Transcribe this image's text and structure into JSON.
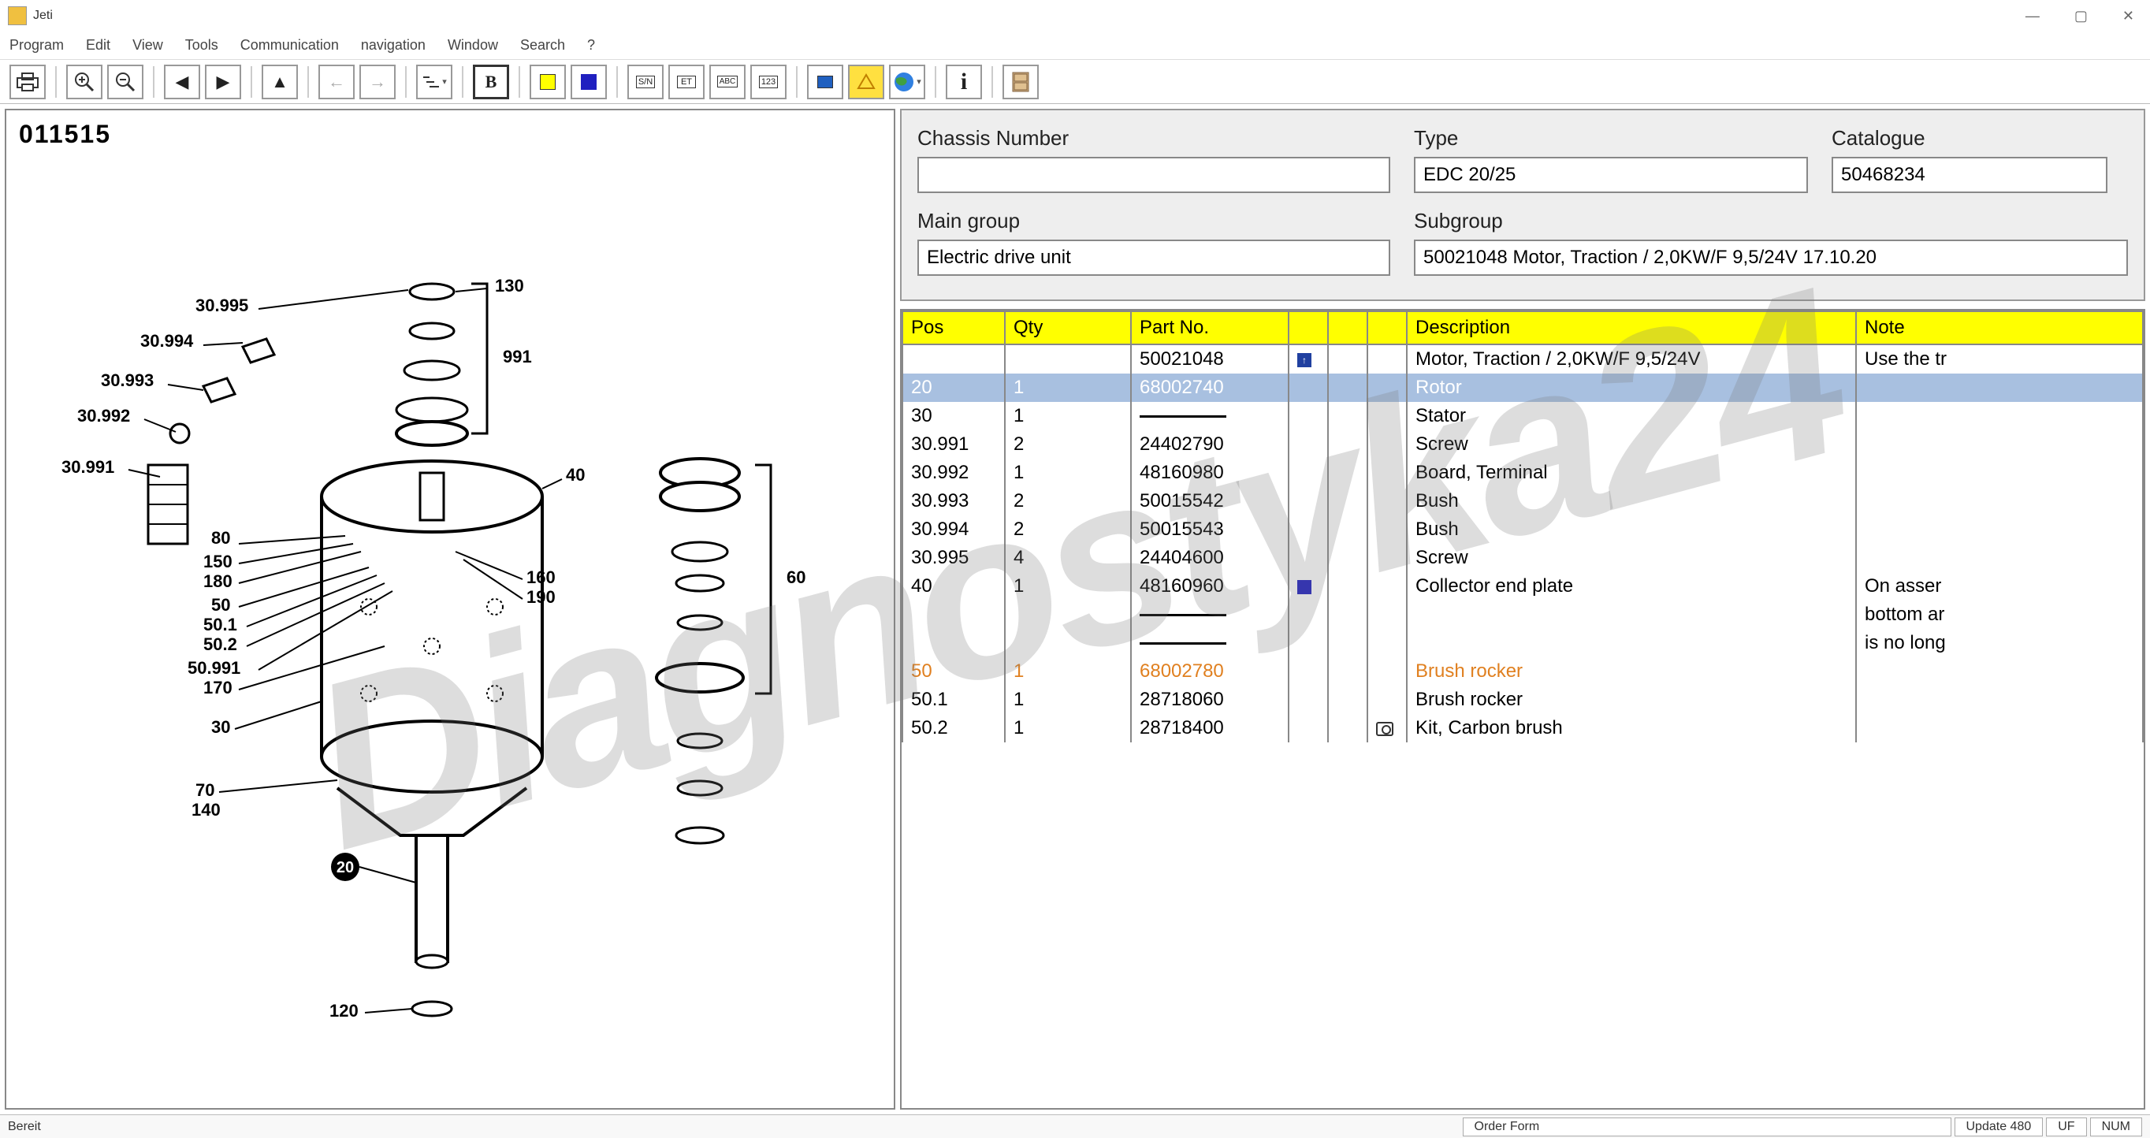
{
  "window": {
    "title": "Jeti",
    "minimize": "—",
    "maximize": "▢",
    "close": "✕"
  },
  "menu": {
    "program": "Program",
    "edit": "Edit",
    "view": "View",
    "tools": "Tools",
    "communication": "Communication",
    "navigation": "navigation",
    "window": "Window",
    "search": "Search",
    "help": "?"
  },
  "toolbar": {
    "printer": "⎙",
    "zoom_in": "🔍+",
    "zoom_out": "🔍−",
    "prev": "◀",
    "next": "▶",
    "up": "▲",
    "back": "←",
    "forward": "→",
    "tree": "☰",
    "bold": "B",
    "sn": "S/N",
    "et": "ET",
    "abc": "ABC",
    "num": "123",
    "info": "i"
  },
  "drawing": {
    "number": "011515",
    "callouts": [
      "130",
      "30.995",
      "30.994",
      "991",
      "30.993",
      "30.992",
      "30.991",
      "40",
      "80",
      "150",
      "180",
      "60",
      "50",
      "160",
      "50.1",
      "190",
      "50.2",
      "50.991",
      "170",
      "30",
      "70",
      "140",
      "20",
      "120"
    ]
  },
  "info": {
    "chassis_label": "Chassis Number",
    "chassis_value": "",
    "type_label": "Type",
    "type_value": "EDC 20/25",
    "catalogue_label": "Catalogue",
    "catalogue_value": "50468234",
    "maingroup_label": "Main group",
    "maingroup_value": "Electric drive unit",
    "subgroup_label": "Subgroup",
    "subgroup_value": "50021048  Motor, Traction / 2,0KW/F 9,5/24V 17.10.20"
  },
  "table": {
    "headers": {
      "pos": "Pos",
      "qty": "Qty",
      "partno": "Part No.",
      "col4": "",
      "col5": "",
      "col6": "",
      "desc": "Description",
      "note": "Note"
    },
    "rows": [
      {
        "pos": "",
        "qty": "",
        "part": "50021048",
        "marker": "arrow",
        "desc": "Motor, Traction / 2,0KW/F 9,5/24V",
        "note": "Use the tr",
        "class": ""
      },
      {
        "pos": "20",
        "qty": "1",
        "part": "68002740",
        "marker": "",
        "desc": "Rotor",
        "note": "",
        "class": "selected"
      },
      {
        "pos": "30",
        "qty": "1",
        "part": "__dash__",
        "marker": "",
        "desc": "Stator",
        "note": "",
        "class": ""
      },
      {
        "pos": "30.991",
        "qty": "2",
        "part": "24402790",
        "marker": "",
        "desc": "Screw",
        "note": "",
        "class": ""
      },
      {
        "pos": "30.992",
        "qty": "1",
        "part": "48160980",
        "marker": "",
        "desc": "Board, Terminal",
        "note": "",
        "class": ""
      },
      {
        "pos": "30.993",
        "qty": "2",
        "part": "50015542",
        "marker": "",
        "desc": "Bush",
        "note": "",
        "class": ""
      },
      {
        "pos": "30.994",
        "qty": "2",
        "part": "50015543",
        "marker": "",
        "desc": "Bush",
        "note": "",
        "class": ""
      },
      {
        "pos": "30.995",
        "qty": "4",
        "part": "24404600",
        "marker": "",
        "desc": "Screw",
        "note": "",
        "class": ""
      },
      {
        "pos": "40",
        "qty": "1",
        "part": "48160960",
        "marker": "blue",
        "desc": "Collector end plate",
        "note": "On asser",
        "class": ""
      },
      {
        "pos": "",
        "qty": "",
        "part": "__dash__",
        "marker": "",
        "desc": "",
        "note": "bottom ar",
        "class": ""
      },
      {
        "pos": "",
        "qty": "",
        "part": "__dash__",
        "marker": "",
        "desc": "",
        "note": "is no long",
        "class": ""
      },
      {
        "pos": "50",
        "qty": "1",
        "part": "68002780",
        "marker": "",
        "desc": "Brush rocker",
        "note": "",
        "class": "orange"
      },
      {
        "pos": "50.1",
        "qty": "1",
        "part": "28718060",
        "marker": "",
        "desc": "Brush rocker",
        "note": "",
        "class": ""
      },
      {
        "pos": "50.2",
        "qty": "1",
        "part": "28718400",
        "marker": "camera",
        "desc": "Kit, Carbon brush",
        "note": "",
        "class": ""
      }
    ]
  },
  "statusbar": {
    "ready": "Bereit",
    "order_form": "Order Form",
    "update": "Update 480",
    "uf": "UF",
    "num": "NUM"
  },
  "watermark": "Diagnostyka24",
  "colors": {
    "header_bg": "#ffff00",
    "selected_bg": "#a8c0e0",
    "orange_text": "#e08020",
    "blue_marker": "#2020c0"
  }
}
